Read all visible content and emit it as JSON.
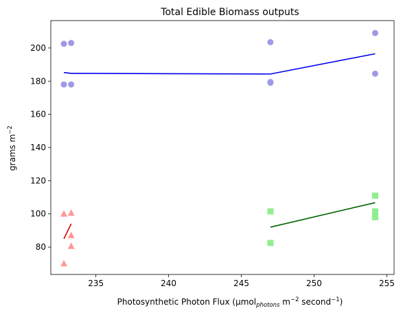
{
  "chart_data": {
    "type": "scatter",
    "title": "Total Edible Biomass outputs",
    "xlabel": {
      "prefix": "Photosynthetic Photon Flux (μmol",
      "subscript": "photons",
      "middle": " m",
      "sup1": "−2",
      "middle2": " second",
      "sup2": "−1",
      "suffix": ")"
    },
    "ylabel": {
      "text": "grams m",
      "sup": "−2"
    },
    "xlim": [
      231.9,
      255.5
    ],
    "ylim": [
      63.5,
      216.5
    ],
    "xticks": [
      235,
      240,
      245,
      250,
      255
    ],
    "yticks": [
      80,
      100,
      120,
      140,
      160,
      180,
      200
    ],
    "grid": false,
    "series": [
      {
        "marker": "circle",
        "color": "#9f9ae6",
        "points": [
          [
            232.8,
            202.5
          ],
          [
            233.3,
            203.0
          ],
          [
            232.8,
            178.0
          ],
          [
            233.3,
            178.0
          ],
          [
            247.0,
            203.5
          ],
          [
            247.0,
            179.5
          ],
          [
            247.0,
            179.0
          ],
          [
            254.2,
            209.0
          ],
          [
            254.2,
            184.5
          ]
        ]
      },
      {
        "marker": "square",
        "color": "#90ee90",
        "points": [
          [
            247.0,
            101.5
          ],
          [
            247.0,
            82.5
          ],
          [
            254.2,
            111.0
          ],
          [
            254.2,
            101.5
          ],
          [
            254.2,
            99.5
          ],
          [
            254.2,
            98.0
          ]
        ]
      },
      {
        "marker": "triangle",
        "color": "#ff9999",
        "points": [
          [
            232.8,
            100.0
          ],
          [
            233.3,
            100.5
          ],
          [
            233.3,
            87.0
          ],
          [
            233.3,
            80.5
          ],
          [
            232.8,
            70.0
          ]
        ]
      }
    ],
    "lines": [
      {
        "color": "#0000ee",
        "points": [
          [
            232.8,
            185.2
          ],
          [
            233.3,
            184.7
          ],
          [
            247.0,
            184.3
          ],
          [
            254.2,
            196.5
          ]
        ]
      },
      {
        "color": "#006400",
        "points": [
          [
            247.0,
            92.0
          ],
          [
            254.2,
            106.8
          ]
        ]
      },
      {
        "color": "#dd0000",
        "points": [
          [
            232.8,
            85.0
          ],
          [
            233.3,
            94.0
          ]
        ]
      }
    ]
  }
}
